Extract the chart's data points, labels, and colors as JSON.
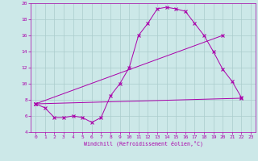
{
  "xlabel": "Windchill (Refroidissement éolien,°C)",
  "background_color": "#cce8e8",
  "grid_color": "#aacccc",
  "line_color": "#aa00aa",
  "xlim": [
    -0.5,
    23.5
  ],
  "ylim": [
    4,
    20
  ],
  "xticks": [
    0,
    1,
    2,
    3,
    4,
    5,
    6,
    7,
    8,
    9,
    10,
    11,
    12,
    13,
    14,
    15,
    16,
    17,
    18,
    19,
    20,
    21,
    22,
    23
  ],
  "yticks": [
    4,
    6,
    8,
    10,
    12,
    14,
    16,
    18,
    20
  ],
  "line1_x": [
    0,
    1,
    2,
    3,
    4,
    5,
    6,
    7,
    8,
    9,
    10,
    11,
    12,
    13,
    14,
    15,
    16,
    17,
    18,
    19,
    20,
    21,
    22
  ],
  "line1_y": [
    7.5,
    7.0,
    5.8,
    5.8,
    6.0,
    5.8,
    5.2,
    5.8,
    8.5,
    10.0,
    12.0,
    16.0,
    17.5,
    19.3,
    19.5,
    19.3,
    19.0,
    17.5,
    16.0,
    14.0,
    11.8,
    10.3,
    8.3
  ],
  "line2_x": [
    0,
    22
  ],
  "line2_y": [
    7.5,
    8.2
  ],
  "line3_x": [
    0,
    20
  ],
  "line3_y": [
    7.5,
    16.0
  ]
}
